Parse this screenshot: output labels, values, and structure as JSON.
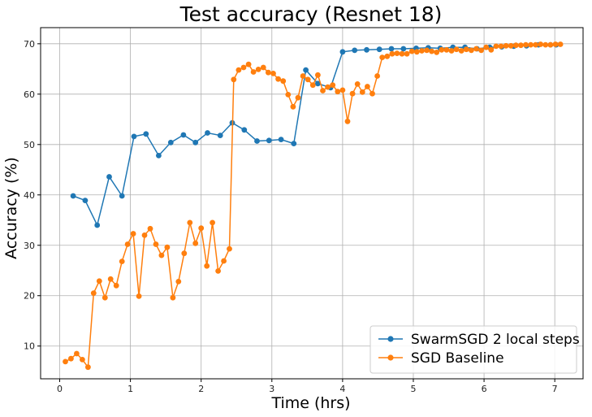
{
  "chart_data": {
    "type": "line",
    "title": "Test accuracy (Resnet 18)",
    "xlabel": "Time (hrs)",
    "ylabel": "Accuracy (%)",
    "xlim": [
      -0.27,
      7.4
    ],
    "ylim": [
      3.5,
      73.2
    ],
    "xticks": [
      0,
      1,
      2,
      3,
      4,
      5,
      6,
      7
    ],
    "yticks": [
      10,
      20,
      30,
      40,
      50,
      60,
      70
    ],
    "grid": true,
    "legend_position": "lower-right",
    "series": [
      {
        "name": "SwarmSGD 2 local steps",
        "color": "#1f77b4",
        "x": [
          0.19,
          0.36,
          0.53,
          0.7,
          0.88,
          1.05,
          1.22,
          1.4,
          1.57,
          1.75,
          1.92,
          2.09,
          2.27,
          2.44,
          2.61,
          2.79,
          2.96,
          3.13,
          3.31,
          3.48,
          3.65,
          3.83,
          4.0,
          4.17,
          4.34,
          4.52,
          4.69,
          4.86,
          5.04,
          5.21,
          5.38,
          5.56,
          5.73,
          5.9,
          6.08,
          6.25,
          6.42,
          6.6,
          6.77,
          6.94,
          7.02
        ],
        "y": [
          39.8,
          38.9,
          34.0,
          43.6,
          39.8,
          51.6,
          52.1,
          47.8,
          50.4,
          51.9,
          50.4,
          52.3,
          51.8,
          54.3,
          52.9,
          50.7,
          50.8,
          51.0,
          50.2,
          64.8,
          62.1,
          61.3,
          68.4,
          68.7,
          68.8,
          68.9,
          69.0,
          69.0,
          69.1,
          69.2,
          69.1,
          69.3,
          69.3,
          69.0,
          69.3,
          69.4,
          69.5,
          69.6,
          69.8,
          69.8,
          69.8
        ]
      },
      {
        "name": "SGD Baseline",
        "color": "#ff7f0e",
        "x": [
          0.08,
          0.16,
          0.24,
          0.32,
          0.4,
          0.48,
          0.56,
          0.64,
          0.72,
          0.8,
          0.88,
          0.96,
          1.04,
          1.12,
          1.2,
          1.28,
          1.36,
          1.44,
          1.52,
          1.6,
          1.68,
          1.76,
          1.84,
          1.92,
          2.0,
          2.08,
          2.16,
          2.24,
          2.32,
          2.4,
          2.46,
          2.53,
          2.6,
          2.67,
          2.74,
          2.81,
          2.88,
          2.95,
          3.02,
          3.09,
          3.16,
          3.23,
          3.3,
          3.37,
          3.44,
          3.51,
          3.58,
          3.65,
          3.72,
          3.79,
          3.86,
          3.93,
          4.0,
          4.07,
          4.14,
          4.21,
          4.28,
          4.35,
          4.42,
          4.49,
          4.56,
          4.63,
          4.7,
          4.77,
          4.84,
          4.91,
          4.98,
          5.05,
          5.12,
          5.19,
          5.26,
          5.33,
          5.4,
          5.47,
          5.54,
          5.61,
          5.68,
          5.75,
          5.82,
          5.89,
          5.96,
          6.03,
          6.1,
          6.17,
          6.24,
          6.31,
          6.38,
          6.45,
          6.52,
          6.59,
          6.66,
          6.73,
          6.8,
          6.87,
          6.94,
          7.01,
          7.08
        ],
        "y": [
          6.9,
          7.5,
          8.5,
          7.3,
          5.8,
          20.5,
          22.9,
          19.6,
          23.3,
          22.0,
          26.8,
          30.2,
          32.3,
          19.9,
          32.0,
          33.3,
          30.2,
          28.0,
          29.6,
          19.6,
          22.8,
          28.4,
          34.5,
          30.4,
          33.4,
          25.9,
          34.5,
          24.9,
          26.9,
          29.3,
          62.9,
          64.8,
          65.3,
          65.9,
          64.4,
          64.9,
          65.3,
          64.3,
          64.1,
          63.0,
          62.6,
          59.9,
          57.5,
          59.3,
          63.6,
          62.9,
          61.8,
          63.8,
          60.7,
          61.4,
          61.8,
          60.5,
          60.8,
          54.6,
          60.1,
          62.0,
          60.4,
          61.5,
          60.1,
          63.6,
          67.3,
          67.5,
          68.0,
          68.1,
          68.0,
          68.0,
          68.5,
          68.4,
          68.6,
          68.7,
          68.5,
          68.3,
          68.8,
          68.8,
          68.6,
          68.9,
          68.6,
          68.9,
          68.7,
          69.0,
          68.7,
          69.3,
          68.8,
          69.5,
          69.5,
          69.6,
          69.6,
          69.7,
          69.7,
          69.8,
          69.8,
          69.8,
          69.9,
          69.8,
          69.8,
          69.9,
          69.9
        ]
      }
    ]
  }
}
